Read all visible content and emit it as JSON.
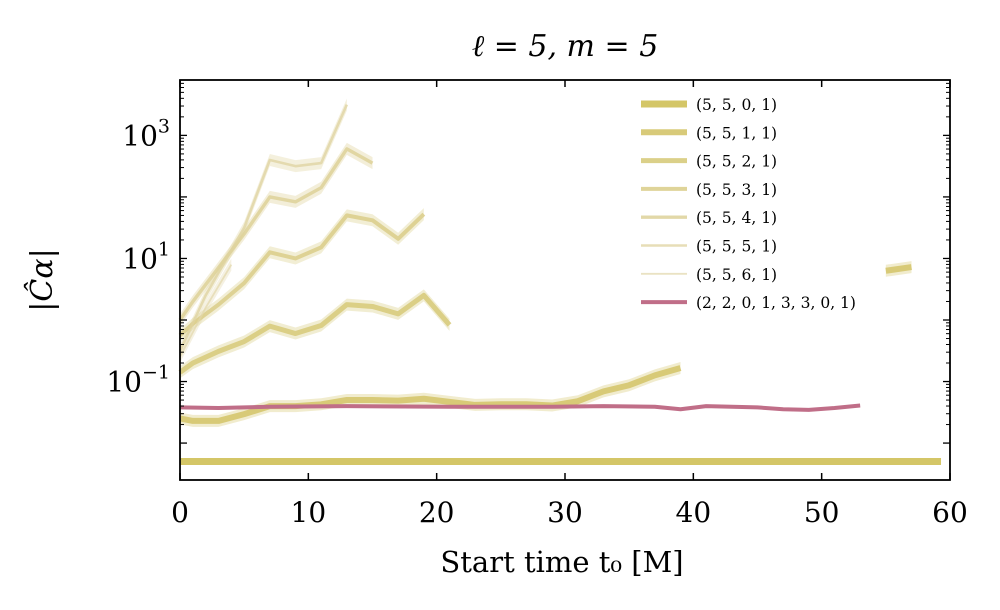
{
  "chart_data": {
    "type": "line",
    "title": "ℓ = 5, m = 5",
    "xlabel": "Start time t₀ [M]",
    "ylabel": "|Ĉα|",
    "xlim": [
      0,
      60
    ],
    "ylim_log10": [
      -2.6,
      3.9
    ],
    "yscale": "log",
    "grid": false,
    "legend_position": "top-right",
    "x_ticks": [
      {
        "value": 0,
        "label": "0"
      },
      {
        "value": 10,
        "label": "10"
      },
      {
        "value": 20,
        "label": "20"
      },
      {
        "value": 30,
        "label": "30"
      },
      {
        "value": 40,
        "label": "40"
      },
      {
        "value": 50,
        "label": "50"
      },
      {
        "value": 60,
        "label": "60"
      }
    ],
    "y_ticks": [
      {
        "log10": -1,
        "base": "10",
        "exp": "−1"
      },
      {
        "log10": 1,
        "base": "10",
        "exp": "1"
      },
      {
        "log10": 3,
        "base": "10",
        "exp": "3"
      }
    ],
    "series": [
      {
        "name": "(5, 5, 0, 1)",
        "color": "#d4c667",
        "width": 7,
        "opacity": 1.0,
        "segments": [
          [
            [
              0,
              -2.3
            ],
            [
              59.3,
              -2.3
            ]
          ]
        ]
      },
      {
        "name": "(5, 5, 1, 1)",
        "color": "#d6c872",
        "width": 6,
        "opacity": 0.95,
        "segments": [
          [
            [
              0,
              -1.6
            ],
            [
              1,
              -1.64
            ],
            [
              3,
              -1.64
            ],
            [
              5,
              -1.53
            ],
            [
              7,
              -1.4
            ],
            [
              9,
              -1.4
            ],
            [
              11,
              -1.37
            ],
            [
              13,
              -1.3
            ],
            [
              15,
              -1.3
            ],
            [
              17,
              -1.31
            ],
            [
              19,
              -1.28
            ],
            [
              21,
              -1.33
            ],
            [
              23,
              -1.38
            ],
            [
              25,
              -1.37
            ],
            [
              27,
              -1.37
            ],
            [
              29,
              -1.39
            ],
            [
              31,
              -1.32
            ],
            [
              33,
              -1.16
            ],
            [
              35,
              -1.06
            ],
            [
              37,
              -0.9
            ],
            [
              39,
              -0.78
            ]
          ],
          [
            [
              55,
              0.8
            ],
            [
              57,
              0.86
            ]
          ]
        ]
      },
      {
        "name": "(5, 5, 2, 1)",
        "color": "#d8cb7d",
        "width": 5,
        "opacity": 0.9,
        "segments": [
          [
            [
              0,
              -0.85
            ],
            [
              1,
              -0.7
            ],
            [
              3,
              -0.51
            ],
            [
              5,
              -0.35
            ],
            [
              7,
              -0.1
            ],
            [
              9,
              -0.22
            ],
            [
              11,
              -0.09
            ],
            [
              13,
              0.25
            ],
            [
              15,
              0.22
            ],
            [
              17,
              0.1
            ],
            [
              19,
              0.4
            ],
            [
              21,
              -0.08
            ]
          ]
        ]
      },
      {
        "name": "(5, 5, 3, 1)",
        "color": "#dacd88",
        "width": 4,
        "opacity": 0.85,
        "segments": [
          [
            [
              0,
              -0.25
            ],
            [
              1,
              -0.06
            ],
            [
              3,
              0.25
            ],
            [
              5,
              0.6
            ],
            [
              7,
              1.1
            ],
            [
              9,
              1.0
            ],
            [
              11,
              1.18
            ],
            [
              13,
              1.7
            ],
            [
              15,
              1.62
            ],
            [
              17,
              1.32
            ],
            [
              19,
              1.72
            ]
          ]
        ]
      },
      {
        "name": "(5, 5, 4, 1)",
        "color": "#dccf93",
        "width": 3.4,
        "opacity": 0.8,
        "segments": [
          [
            [
              0,
              0.0
            ],
            [
              1,
              0.3
            ],
            [
              3,
              0.85
            ],
            [
              5,
              1.4
            ],
            [
              7,
              2.0
            ],
            [
              9,
              1.92
            ],
            [
              11,
              2.15
            ],
            [
              13,
              2.78
            ],
            [
              15,
              2.55
            ]
          ]
        ]
      },
      {
        "name": "(5, 5, 5, 1)",
        "color": "#dfd39f",
        "width": 2.6,
        "opacity": 0.75,
        "segments": [
          [
            [
              0,
              -0.5
            ],
            [
              2,
              0.4
            ],
            [
              5,
              1.5
            ],
            [
              7,
              2.6
            ],
            [
              9,
              2.5
            ],
            [
              11,
              2.55
            ],
            [
              13,
              3.5
            ]
          ]
        ]
      },
      {
        "name": "(5, 5, 6, 1)",
        "color": "#e2d7ab",
        "width": 1.8,
        "opacity": 0.7,
        "segments": [
          [
            [
              0,
              -0.6
            ],
            [
              2,
              0.2
            ],
            [
              4,
              0.9
            ]
          ]
        ]
      },
      {
        "name": "(2, 2, 0, 1, 3, 3, 0, 1)",
        "color": "#c06e88",
        "width": 4,
        "opacity": 1.0,
        "segments": [
          [
            [
              0,
              -1.42
            ],
            [
              3,
              -1.43
            ],
            [
              7,
              -1.41
            ],
            [
              13,
              -1.4
            ],
            [
              21,
              -1.41
            ],
            [
              29,
              -1.41
            ],
            [
              33,
              -1.4
            ],
            [
              37,
              -1.41
            ],
            [
              39,
              -1.45
            ],
            [
              41,
              -1.4
            ],
            [
              43,
              -1.41
            ],
            [
              45,
              -1.42
            ],
            [
              47,
              -1.45
            ],
            [
              49,
              -1.46
            ],
            [
              51,
              -1.43
            ],
            [
              53,
              -1.39
            ]
          ]
        ]
      }
    ]
  }
}
